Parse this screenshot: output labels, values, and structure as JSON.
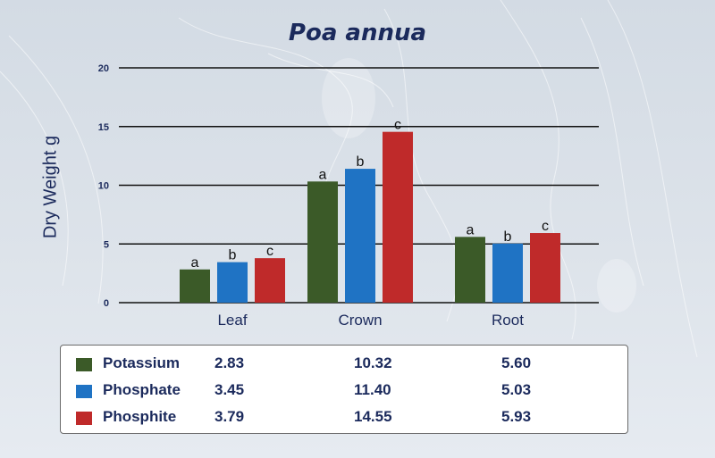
{
  "chart_data": {
    "type": "bar",
    "title": "Poa annua",
    "xlabel": "",
    "ylabel": "Dry Weight g",
    "ylim": [
      0,
      20
    ],
    "yticks": [
      0,
      5,
      10,
      15,
      20
    ],
    "grid": true,
    "categories": [
      "Leaf",
      "Crown",
      "Root"
    ],
    "series": [
      {
        "name": "Potassium",
        "color": "#3b5a28",
        "values": [
          2.83,
          10.32,
          5.6
        ],
        "value_labels": [
          "2.83",
          "10.32",
          "5.60"
        ],
        "letters": [
          "a",
          "a",
          "a"
        ]
      },
      {
        "name": "Phosphate",
        "color": "#1f73c4",
        "values": [
          3.45,
          11.4,
          5.03
        ],
        "value_labels": [
          "3.45",
          "11.40",
          "5.03"
        ],
        "letters": [
          "b",
          "b",
          "b"
        ]
      },
      {
        "name": "Phosphite",
        "color": "#bf2a2a",
        "values": [
          3.79,
          14.55,
          5.93
        ],
        "value_labels": [
          "3.79",
          "14.55",
          "5.93"
        ],
        "letters": [
          "c",
          "c",
          "c"
        ]
      }
    ],
    "legend": "bottom-table"
  }
}
